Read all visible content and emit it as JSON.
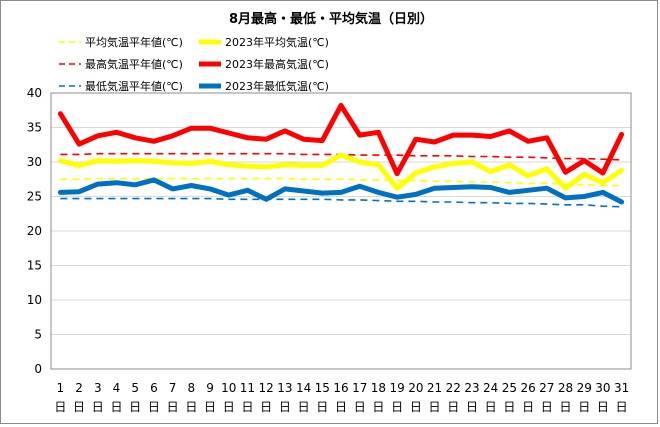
{
  "chart_data": {
    "type": "line",
    "title": "8月最高・最低・平均気温（日別）",
    "xlabel": "",
    "ylabel": "",
    "ylim": [
      0,
      40
    ],
    "yticks": [
      0,
      5,
      10,
      15,
      20,
      25,
      30,
      35,
      40
    ],
    "grid": true,
    "legend_position": "top-left",
    "day_suffix": "日",
    "categories": [
      "1",
      "2",
      "3",
      "4",
      "5",
      "6",
      "7",
      "8",
      "9",
      "10",
      "11",
      "12",
      "13",
      "14",
      "15",
      "16",
      "17",
      "18",
      "19",
      "20",
      "21",
      "22",
      "23",
      "24",
      "25",
      "26",
      "27",
      "28",
      "29",
      "30",
      "31"
    ],
    "series": [
      {
        "name": "平均気温平年値(℃)",
        "color": "#ffff00",
        "style": "dashed",
        "values": [
          27.5,
          27.5,
          27.6,
          27.6,
          27.6,
          27.6,
          27.6,
          27.6,
          27.6,
          27.6,
          27.6,
          27.6,
          27.6,
          27.5,
          27.5,
          27.5,
          27.4,
          27.4,
          27.3,
          27.3,
          27.2,
          27.2,
          27.1,
          27.1,
          27.0,
          26.9,
          26.9,
          26.8,
          26.7,
          26.6,
          26.6
        ]
      },
      {
        "name": "2023年平均気温(℃)",
        "color": "#ffff00",
        "style": "solid",
        "values": [
          30.2,
          29.5,
          30.2,
          30.1,
          30.2,
          30.1,
          29.9,
          29.8,
          30.1,
          29.6,
          29.4,
          29.3,
          29.6,
          29.5,
          29.5,
          31.0,
          30.0,
          29.6,
          26.2,
          28.4,
          29.3,
          29.8,
          30.0,
          28.6,
          29.6,
          28.0,
          29.0,
          26.2,
          28.2,
          27.0,
          28.8
        ]
      },
      {
        "name": "最高気温平年値(℃)",
        "color": "#ff0000",
        "style": "dashed",
        "values": [
          31.1,
          31.1,
          31.2,
          31.2,
          31.2,
          31.2,
          31.2,
          31.2,
          31.2,
          31.2,
          31.2,
          31.2,
          31.2,
          31.1,
          31.1,
          31.1,
          31.0,
          31.0,
          31.0,
          30.9,
          30.9,
          30.9,
          30.8,
          30.8,
          30.7,
          30.7,
          30.6,
          30.5,
          30.5,
          30.4,
          30.3
        ]
      },
      {
        "name": "2023年最高気温(℃)",
        "color": "#ff0000",
        "style": "solid",
        "values": [
          37.0,
          32.6,
          33.8,
          34.3,
          33.5,
          33.0,
          33.8,
          34.9,
          34.9,
          34.2,
          33.5,
          33.3,
          34.5,
          33.3,
          33.1,
          38.2,
          33.9,
          34.3,
          28.3,
          33.3,
          32.9,
          33.9,
          33.9,
          33.7,
          34.5,
          33.0,
          33.5,
          28.5,
          30.2,
          28.4,
          34.0
        ]
      },
      {
        "name": "最低気温平年値(℃)",
        "color": "#0070c0",
        "style": "dashed",
        "values": [
          24.7,
          24.7,
          24.7,
          24.7,
          24.7,
          24.7,
          24.7,
          24.7,
          24.7,
          24.6,
          24.6,
          24.6,
          24.6,
          24.6,
          24.6,
          24.5,
          24.5,
          24.4,
          24.3,
          24.3,
          24.2,
          24.2,
          24.1,
          24.1,
          24.0,
          24.0,
          23.9,
          23.8,
          23.8,
          23.6,
          23.5
        ]
      },
      {
        "name": "2023年最低気温(℃)",
        "color": "#0070c0",
        "style": "solid",
        "values": [
          25.6,
          25.7,
          26.8,
          27.0,
          26.7,
          27.4,
          26.1,
          26.6,
          26.1,
          25.2,
          25.9,
          24.6,
          26.1,
          25.8,
          25.5,
          25.6,
          26.5,
          25.6,
          24.9,
          25.3,
          26.2,
          26.3,
          26.4,
          26.3,
          25.6,
          25.9,
          26.2,
          24.8,
          25.0,
          25.6,
          24.2
        ]
      }
    ]
  }
}
